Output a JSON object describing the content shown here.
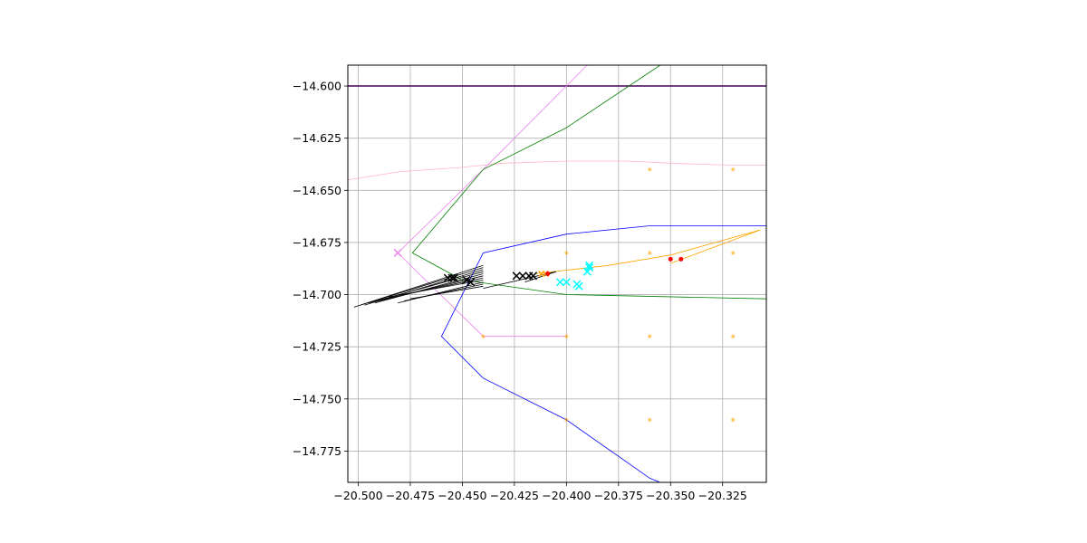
{
  "chart_data": {
    "type": "line",
    "title": "",
    "xlabel": "",
    "ylabel": "",
    "xlim": [
      -20.505,
      -20.304
    ],
    "ylim": [
      -14.79,
      -14.59
    ],
    "grid": true,
    "x_ticks": [
      -20.5,
      -20.475,
      -20.45,
      -20.425,
      -20.4,
      -20.375,
      -20.35,
      -20.325
    ],
    "x_tick_labels": [
      "−20.500",
      "−20.475",
      "−20.450",
      "−20.425",
      "−20.400",
      "−20.375",
      "−20.350",
      "−20.325"
    ],
    "y_ticks": [
      -14.6,
      -14.625,
      -14.65,
      -14.675,
      -14.7,
      -14.725,
      -14.75,
      -14.775
    ],
    "y_tick_labels": [
      "−14.600",
      "−14.625",
      "−14.650",
      "−14.675",
      "−14.700",
      "−14.725",
      "−14.750",
      "−14.775"
    ],
    "colors": {
      "grid": "#b0b0b0",
      "purple": "#440154",
      "pink": "#ffb6c1",
      "violet": "#ee82ee",
      "green": "#008000",
      "blue": "#0000ff",
      "orange": "#ffa500",
      "black": "#000000",
      "red": "#ff0000",
      "cyan": "#00ffff"
    },
    "series": [
      {
        "color": "#440154",
        "width": 1.6,
        "kind": "line",
        "x": [
          -20.505,
          -20.304
        ],
        "y": [
          -14.6,
          -14.6
        ]
      },
      {
        "color": "#ffb6c1",
        "width": 0.8,
        "kind": "line",
        "x": [
          -20.505,
          -20.48,
          -20.45,
          -20.43,
          -20.4,
          -20.37,
          -20.35,
          -20.32,
          -20.304
        ],
        "y": [
          -14.645,
          -14.641,
          -14.639,
          -14.637,
          -14.636,
          -14.636,
          -14.637,
          -14.638,
          -14.638
        ]
      },
      {
        "color": "#ee82ee",
        "width": 0.8,
        "kind": "line",
        "x": [
          -20.39,
          -20.44,
          -20.481,
          -20.44,
          -20.4
        ],
        "y": [
          -14.59,
          -14.64,
          -14.68,
          -14.72,
          -14.72
        ]
      },
      {
        "color": "#008000",
        "width": 0.8,
        "kind": "line",
        "x": [
          -20.355,
          -20.4,
          -20.44,
          -20.474,
          -20.45,
          -20.4,
          -20.304
        ],
        "y": [
          -14.59,
          -14.62,
          -14.64,
          -14.68,
          -14.693,
          -14.7,
          -14.702
        ]
      },
      {
        "color": "#0000ff",
        "width": 0.8,
        "kind": "line",
        "x": [
          -20.304,
          -20.32,
          -20.36,
          -20.4,
          -20.44,
          -20.46,
          -20.44,
          -20.4,
          -20.36,
          -20.355
        ],
        "y": [
          -14.667,
          -14.667,
          -14.667,
          -14.671,
          -14.68,
          -14.72,
          -14.74,
          -14.76,
          -14.788,
          -14.79
        ]
      },
      {
        "color": "#ffa500",
        "width": 0.8,
        "kind": "line",
        "x": [
          -20.415,
          -20.38,
          -20.35,
          -20.307
        ],
        "y": [
          -14.69,
          -14.686,
          -14.681,
          -14.669
        ]
      },
      {
        "color": "#ffa500",
        "width": 0.8,
        "kind": "line",
        "x": [
          -20.35,
          -20.307
        ],
        "y": [
          -14.685,
          -14.669
        ]
      },
      {
        "color": "#000000",
        "width": 0.8,
        "kind": "segments",
        "x1": [
          -20.502,
          -20.499,
          -20.497,
          -20.495,
          -20.492,
          -20.49,
          -20.487,
          -20.485,
          -20.481,
          -20.478,
          -20.475,
          -20.44,
          -20.42
        ],
        "y1": [
          -14.706,
          -14.705,
          -14.705,
          -14.704,
          -14.704,
          -14.703,
          -14.702,
          -14.701,
          -14.704,
          -14.703,
          -14.702,
          -14.697,
          -14.694
        ],
        "x2": [
          -20.44,
          -20.44,
          -20.44,
          -20.44,
          -20.44,
          -20.44,
          -20.44,
          -20.44,
          -20.44,
          -20.44,
          -20.44,
          -20.405,
          -20.405
        ],
        "y2": [
          -14.686,
          -14.687,
          -14.688,
          -14.689,
          -14.69,
          -14.691,
          -14.692,
          -14.693,
          -14.694,
          -14.695,
          -14.696,
          -14.689,
          -14.689
        ]
      }
    ],
    "scatter": [
      {
        "color": "#ffa500",
        "marker": "dot",
        "size": 2,
        "opacity": 0.6,
        "x": [
          -20.36,
          -20.32,
          -20.4,
          -20.36,
          -20.32,
          -20.44,
          -20.4,
          -20.36,
          -20.32,
          -20.4,
          -20.36,
          -20.32
        ],
        "y": [
          -14.64,
          -14.64,
          -14.68,
          -14.68,
          -14.68,
          -14.72,
          -14.72,
          -14.72,
          -14.72,
          -14.76,
          -14.76,
          -14.76
        ]
      },
      {
        "color": "#ffa500",
        "marker": "x",
        "size": 3,
        "opacity": 1,
        "x": [
          -20.412,
          -20.41
        ],
        "y": [
          -14.69,
          -14.69
        ]
      },
      {
        "color": "#000000",
        "marker": "x",
        "size": 4,
        "opacity": 1,
        "x": [
          -20.457,
          -20.455,
          -20.454,
          -20.448,
          -20.446,
          -20.424,
          -20.421,
          -20.418,
          -20.416
        ],
        "y": [
          -14.692,
          -14.692,
          -14.692,
          -14.693,
          -14.694,
          -14.691,
          -14.691,
          -14.691,
          -14.691
        ]
      },
      {
        "color": "#ff0000",
        "marker": "dot",
        "size": 2.5,
        "opacity": 1,
        "x": [
          -20.409,
          -20.35,
          -20.345
        ],
        "y": [
          -14.69,
          -14.683,
          -14.683
        ]
      },
      {
        "color": "#00ffff",
        "marker": "x",
        "size": 4,
        "opacity": 1,
        "x": [
          -20.389,
          -20.389,
          -20.39,
          -20.403,
          -20.4,
          -20.395,
          -20.394
        ],
        "y": [
          -14.686,
          -14.687,
          -14.689,
          -14.694,
          -14.694,
          -14.695,
          -14.696
        ]
      },
      {
        "color": "#ee82ee",
        "marker": "x",
        "size": 4,
        "opacity": 1,
        "x": [
          -20.481
        ],
        "y": [
          -14.68
        ]
      }
    ]
  }
}
